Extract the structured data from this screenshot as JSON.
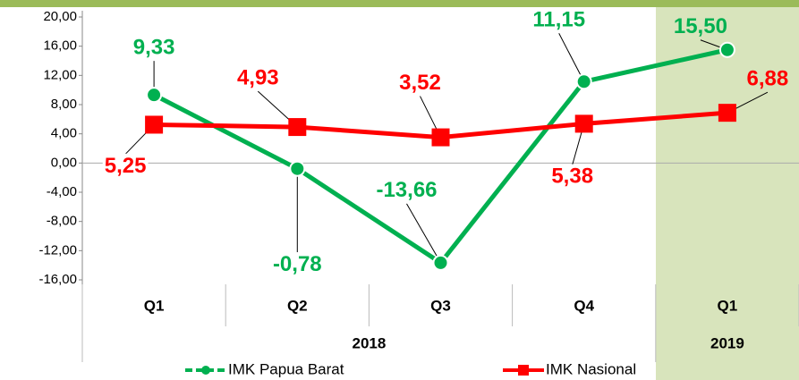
{
  "chart_data": {
    "type": "line",
    "categories": [
      "Q1",
      "Q2",
      "Q3",
      "Q4",
      "Q1"
    ],
    "group_labels": [
      "2018",
      "2019"
    ],
    "series": [
      {
        "name": "IMK Papua Barat",
        "color": "#00b050",
        "values": [
          9.33,
          -0.78,
          -13.66,
          11.15,
          15.5
        ],
        "value_labels": [
          "9,33",
          "-0,78",
          "-13,66",
          "11,15",
          "15,50"
        ]
      },
      {
        "name": "IMK Nasional",
        "color": "#ff0000",
        "values": [
          5.25,
          4.93,
          3.52,
          5.38,
          6.88
        ],
        "value_labels": [
          "5,25",
          "4,93",
          "3,52",
          "5,38",
          "6,88"
        ]
      }
    ],
    "ylim": [
      -16,
      20
    ],
    "yticks": [
      {
        "value": 20,
        "label": "20,00"
      },
      {
        "value": 16,
        "label": "16,00"
      },
      {
        "value": 12,
        "label": "12,00"
      },
      {
        "value": 8,
        "label": "8,00"
      },
      {
        "value": 4,
        "label": "4,00"
      },
      {
        "value": 0,
        "label": "0,00"
      },
      {
        "value": -4,
        "label": "-4,00"
      },
      {
        "value": -8,
        "label": "-8,00"
      },
      {
        "value": -12,
        "label": "-12,00"
      },
      {
        "value": -16,
        "label": "-16,00"
      }
    ],
    "legend": "bottom"
  }
}
